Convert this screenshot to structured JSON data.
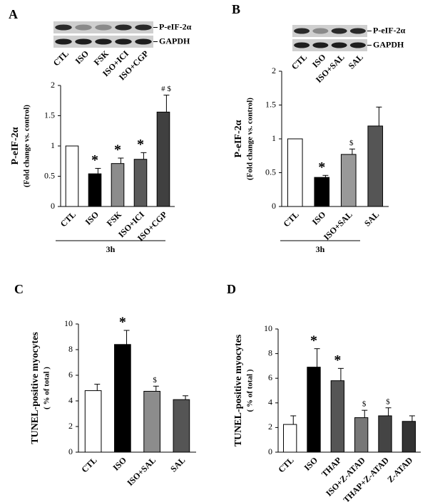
{
  "chart_data": [
    {
      "type": "bar",
      "panel": "A",
      "y_label": "P-eIF-2α",
      "y_sublabel": "(Fold change vs. control)",
      "blot_bands": [
        "P-eIF-2α",
        "GAPDH"
      ],
      "group_label": "3h",
      "categories": [
        "CTL",
        "ISO",
        "FSK",
        "ISO+ICI",
        "ISO+CGP"
      ],
      "values": [
        1,
        0.54,
        0.71,
        0.78,
        1.56
      ],
      "errors": [
        0,
        0.09,
        0.09,
        0.11,
        0.28
      ],
      "colors": [
        "#ffffff",
        "#000000",
        "#8c8c8c",
        "#5a5a5a",
        "#404040"
      ],
      "annotations": [
        null,
        "*",
        "*",
        "*",
        "# $"
      ],
      "ylim": [
        0,
        2
      ],
      "yticks": [
        0,
        0.5,
        1,
        1.5,
        2
      ]
    },
    {
      "type": "bar",
      "panel": "B",
      "y_label": "P-eIF-2α",
      "y_sublabel": "(Fold change vs. control)",
      "blot_bands": [
        "P-eIF-2α",
        "GAPDH"
      ],
      "group_label": "3h",
      "categories": [
        "CTL",
        "ISO",
        "ISO+SAL",
        "SAL"
      ],
      "values": [
        1,
        0.43,
        0.77,
        1.19
      ],
      "errors": [
        0,
        0.03,
        0.08,
        0.28
      ],
      "colors": [
        "#ffffff",
        "#000000",
        "#999999",
        "#555555"
      ],
      "annotations": [
        null,
        "*",
        "$",
        null
      ],
      "ylim": [
        0,
        2
      ],
      "yticks": [
        0,
        0.5,
        1,
        1.5,
        2
      ]
    },
    {
      "type": "bar",
      "panel": "C",
      "y_label": "TUNEL-positive myocytes",
      "y_sublabel": "( % of total )",
      "categories": [
        "CTL",
        "ISO",
        "ISO+SAL",
        "SAL"
      ],
      "values": [
        4.8,
        8.4,
        4.75,
        4.1
      ],
      "errors": [
        0.5,
        1.1,
        0.4,
        0.3
      ],
      "colors": [
        "#ffffff",
        "#000000",
        "#8c8c8c",
        "#555555"
      ],
      "annotations": [
        null,
        "*",
        "$",
        null
      ],
      "ylim": [
        0,
        10
      ],
      "yticks": [
        0,
        2,
        4,
        6,
        8,
        10
      ]
    },
    {
      "type": "bar",
      "panel": "D",
      "y_label": "TUNEL-positive myocytes",
      "y_sublabel": "( % of total )",
      "categories": [
        "CTL",
        "ISO",
        "THAP",
        "ISO+Z-ATAD",
        "THAP+Z-ATAD",
        "Z-ATAD"
      ],
      "values": [
        2.25,
        6.9,
        5.8,
        2.8,
        2.95,
        2.5
      ],
      "errors": [
        0.7,
        1.5,
        1.0,
        0.6,
        0.65,
        0.45
      ],
      "colors": [
        "#ffffff",
        "#000000",
        "#555555",
        "#777777",
        "#444444",
        "#333333"
      ],
      "annotations": [
        null,
        "*",
        "*",
        "$",
        "$",
        null
      ],
      "ylim": [
        0,
        10
      ],
      "yticks": [
        0,
        2,
        4,
        6,
        8,
        10
      ]
    }
  ]
}
